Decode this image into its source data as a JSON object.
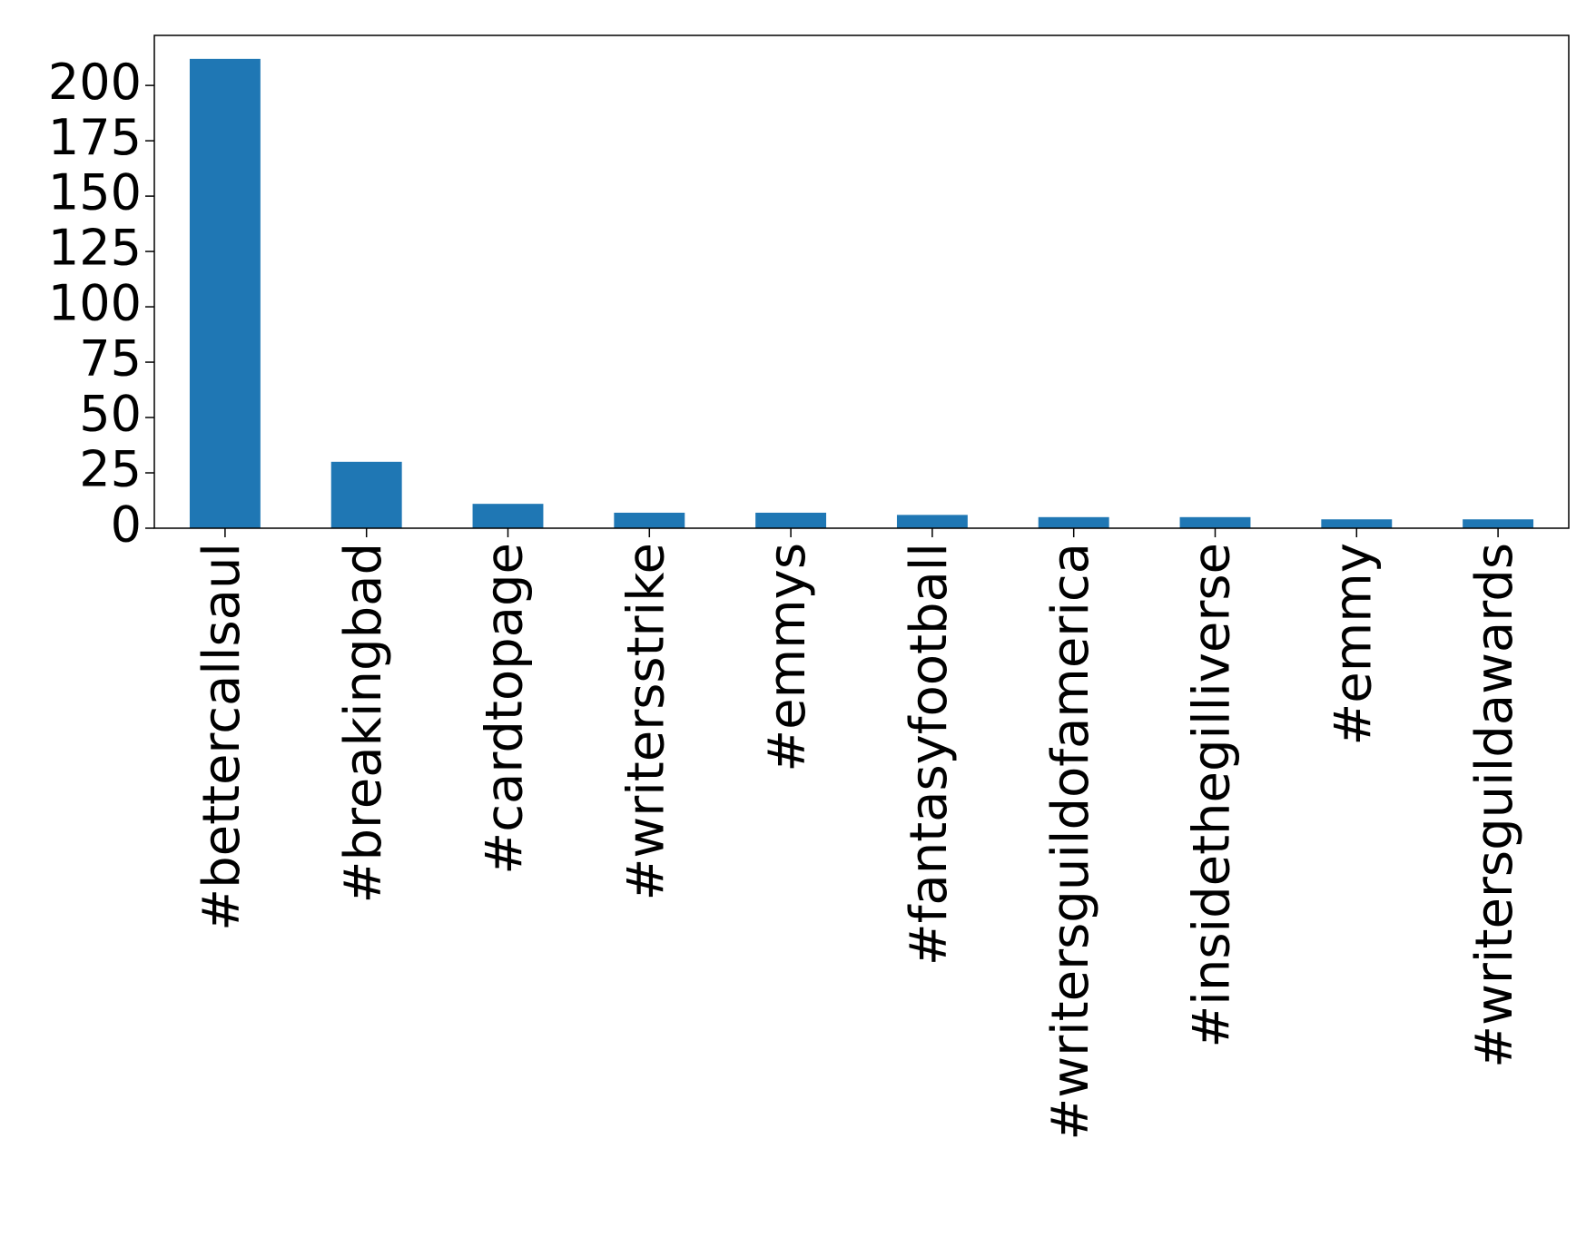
{
  "chart_data": {
    "type": "bar",
    "categories": [
      "#bettercallsaul",
      "#breakingbad",
      "#cardtopage",
      "#writersstrike",
      "#emmys",
      "#fantasyfootball",
      "#writersguildofamerica",
      "#insidethegilliverse",
      "#emmy",
      "#writersguildawards"
    ],
    "values": [
      212,
      30,
      11,
      7,
      7,
      6,
      5,
      5,
      4,
      4
    ],
    "color": "#1f77b4",
    "ylim": [
      0,
      222.6
    ],
    "yticks": [
      0,
      25,
      50,
      75,
      100,
      125,
      150,
      175,
      200
    ],
    "grid": false
  }
}
